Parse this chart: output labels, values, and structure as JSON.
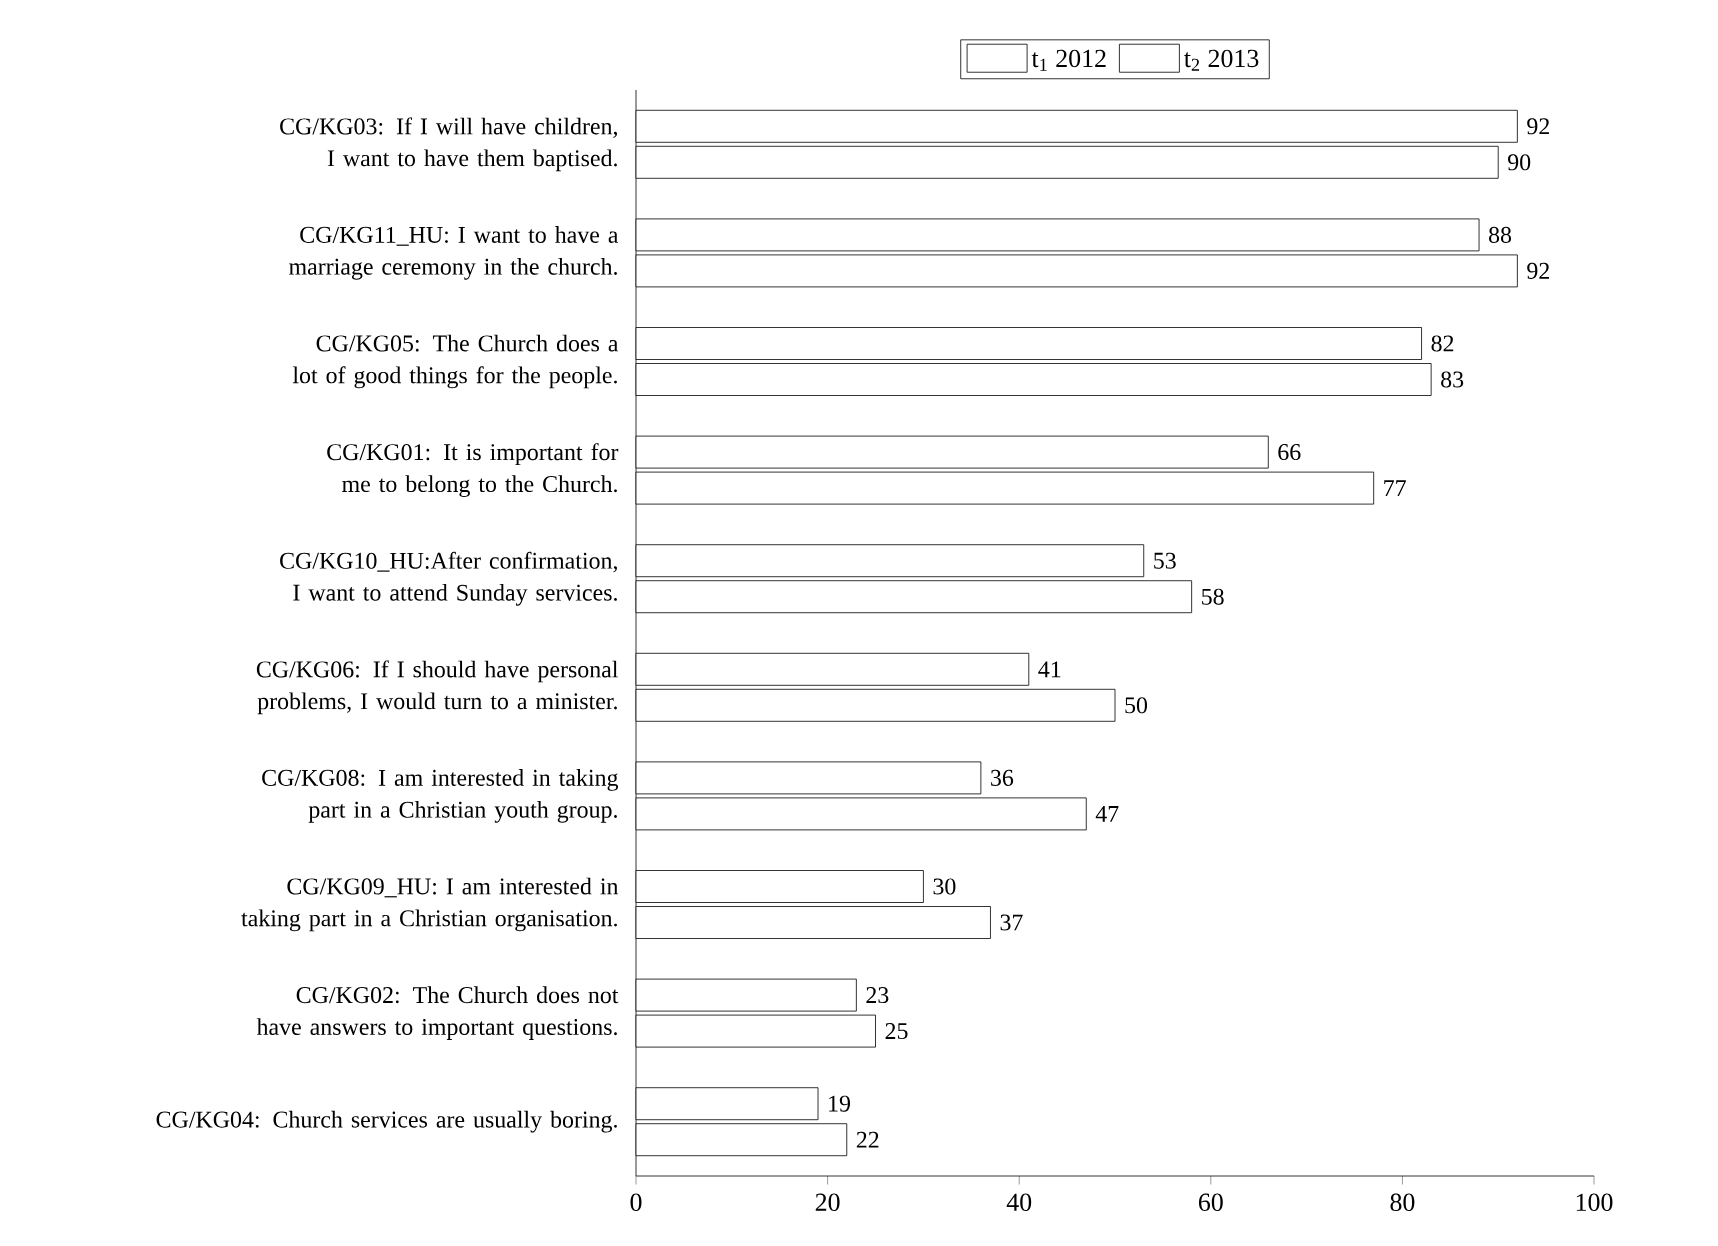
{
  "chart_data": {
    "type": "bar",
    "orientation": "horizontal",
    "categories": [
      "CG/KG03: If I will have children, I want to have them baptised.",
      "CG/KG11_HU: I want to have a marriage ceremony in the church.",
      "CG/KG05: The Church does a lot of good things for the people.",
      "CG/KG01: It is important for me to belong to the Church.",
      "CG/KG10_HU:After confirmation, I want to attend Sunday services.",
      "CG/KG06: If I should have personal problems, I would turn to a minister.",
      "CG/KG08: I am interested in taking part in a Christian youth group.",
      "CG/KG09_HU: I am interested in taking part in a Christian organisation.",
      "CG/KG02: The Church does not have answers to important questions.",
      "CG/KG04: Church services are usually boring."
    ],
    "series": [
      {
        "name": "t$_{1}$ 2012",
        "color": "#ffffff",
        "values": [
          92,
          88,
          82,
          66,
          53,
          41,
          36,
          30,
          23,
          19
        ]
      },
      {
        "name": "t$_{2}$ 2013",
        "color": "#ffffff",
        "values": [
          90,
          92,
          83,
          77,
          58,
          50,
          47,
          37,
          25,
          22
        ]
      }
    ],
    "xlim": [
      0,
      100
    ],
    "xticks": [
      0,
      20,
      40,
      60,
      80,
      100
    ],
    "data_labels": true,
    "grid": false,
    "legend": "top"
  }
}
